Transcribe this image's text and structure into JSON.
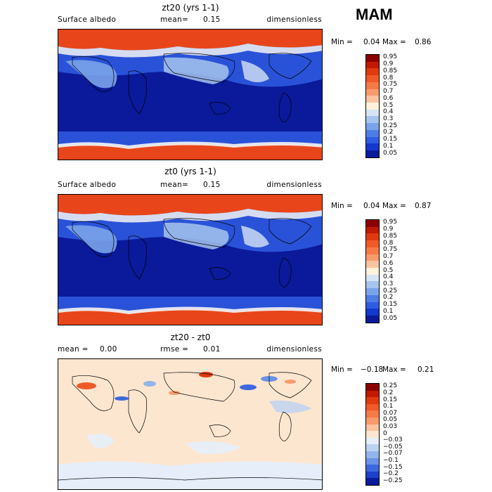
{
  "season": "MAM",
  "panels": [
    {
      "title": "zt20 (yrs 1-1)",
      "left_label": "Surface albedo",
      "mean_label": "mean=",
      "mean_value": "0.15",
      "units": "dimensionless",
      "min_label": "Min =",
      "min_value": "0.04",
      "max_label": "Max =",
      "max_value": "0.86",
      "colorbar_ticks": [
        "0.95",
        "0.9",
        "0.85",
        "0.8",
        "0.75",
        "0.7",
        "0.6",
        "0.5",
        "0.4",
        "0.3",
        "0.25",
        "0.2",
        "0.15",
        "0.1",
        "0.05"
      ],
      "colorbar_colors": [
        "#8b0000",
        "#c01a00",
        "#e03a10",
        "#f05a28",
        "#f57a45",
        "#f89a6c",
        "#fbc3a0",
        "#fff3dc",
        "#d6e4f5",
        "#a6c4ee",
        "#7aa3ea",
        "#4f7de6",
        "#2f5ce0",
        "#1538cc",
        "#0a1a9a"
      ]
    },
    {
      "title": "zt0 (yrs 1-1)",
      "left_label": "Surface albedo",
      "mean_label": "mean=",
      "mean_value": "0.15",
      "units": "dimensionless",
      "min_label": "Min =",
      "min_value": "0.04",
      "max_label": "Max =",
      "max_value": "0.87",
      "colorbar_ticks": [
        "0.95",
        "0.9",
        "0.85",
        "0.8",
        "0.75",
        "0.7",
        "0.6",
        "0.5",
        "0.4",
        "0.3",
        "0.25",
        "0.2",
        "0.15",
        "0.1",
        "0.05"
      ],
      "colorbar_colors": [
        "#8b0000",
        "#c01a00",
        "#e03a10",
        "#f05a28",
        "#f57a45",
        "#f89a6c",
        "#fbc3a0",
        "#fff3dc",
        "#d6e4f5",
        "#a6c4ee",
        "#7aa3ea",
        "#4f7de6",
        "#2f5ce0",
        "#1538cc",
        "#0a1a9a"
      ]
    },
    {
      "title": "zt20 - zt0",
      "left_label": "mean =",
      "left_value": "0.00",
      "rmse_label": "rmse =",
      "rmse_value": "0.01",
      "units": "dimensionless",
      "min_label": "Min =",
      "min_value": "−0.18",
      "max_label": "Max =",
      "max_value": "0.21",
      "colorbar_ticks": [
        "0.25",
        "0.2",
        "0.15",
        "0.1",
        "0.07",
        "0.05",
        "0.03",
        "0",
        "−0.03",
        "−0.05",
        "−0.07",
        "−0.1",
        "−0.15",
        "−0.2",
        "−0.25"
      ],
      "colorbar_colors": [
        "#8b0000",
        "#c01a00",
        "#e03a10",
        "#f05a28",
        "#f57a45",
        "#f89a6c",
        "#fbc3a0",
        "#fde6d0",
        "#e6eefa",
        "#bcd2f2",
        "#94b5ec",
        "#6a92e6",
        "#3e68de",
        "#1d40c8",
        "#0a1a9a"
      ]
    }
  ],
  "chart_data": [
    {
      "type": "heatmap",
      "title": "zt20 (yrs 1-1)",
      "variable": "Surface albedo",
      "units": "dimensionless",
      "mean": 0.15,
      "min": 0.04,
      "max": 0.86,
      "levels": [
        0.05,
        0.1,
        0.15,
        0.2,
        0.25,
        0.3,
        0.4,
        0.5,
        0.6,
        0.7,
        0.75,
        0.8,
        0.85,
        0.9,
        0.95
      ]
    },
    {
      "type": "heatmap",
      "title": "zt0 (yrs 1-1)",
      "variable": "Surface albedo",
      "units": "dimensionless",
      "mean": 0.15,
      "min": 0.04,
      "max": 0.87,
      "levels": [
        0.05,
        0.1,
        0.15,
        0.2,
        0.25,
        0.3,
        0.4,
        0.5,
        0.6,
        0.7,
        0.75,
        0.8,
        0.85,
        0.9,
        0.95
      ]
    },
    {
      "type": "heatmap",
      "title": "zt20 - zt0",
      "units": "dimensionless",
      "mean": 0.0,
      "rmse": 0.01,
      "min": -0.18,
      "max": 0.21,
      "levels": [
        -0.25,
        -0.2,
        -0.15,
        -0.1,
        -0.07,
        -0.05,
        -0.03,
        0,
        0.03,
        0.05,
        0.07,
        0.1,
        0.15,
        0.2,
        0.25
      ]
    }
  ]
}
